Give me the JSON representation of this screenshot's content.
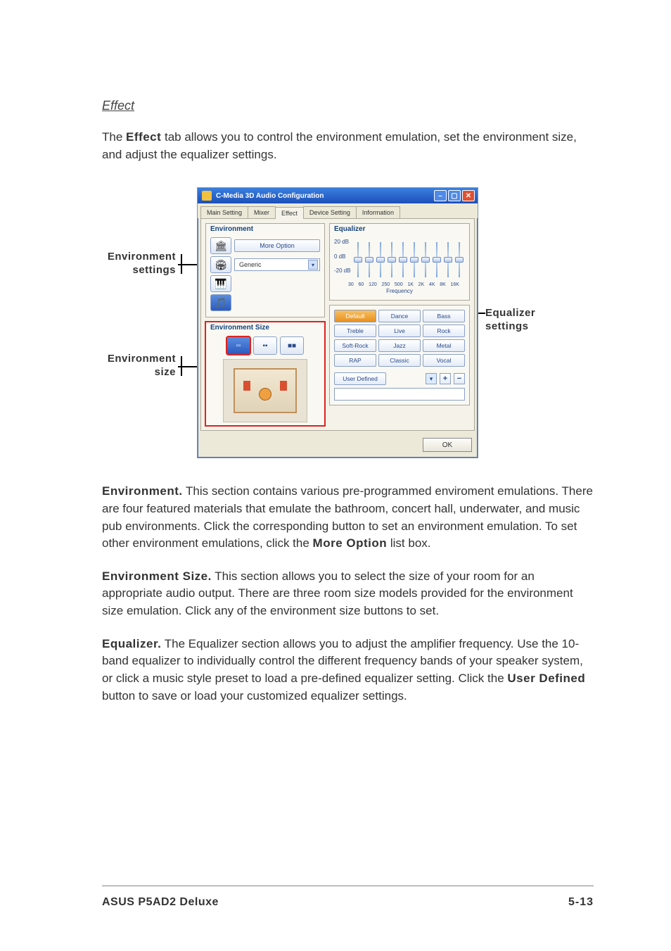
{
  "section_title": "Effect",
  "intro_pre": "The ",
  "intro_bold": "Effect",
  "intro_post": " tab allows you to control the environment emulation, set the environment size, and adjust the equalizer settings.",
  "callouts": {
    "env_settings_l1": "Environment",
    "env_settings_l2": "settings",
    "env_size_l1": "Environment",
    "env_size_l2": "size",
    "equalizer_l1": "Equalizer",
    "equalizer_l2": "settings"
  },
  "window": {
    "title": "C-Media 3D Audio Configuration",
    "tabs": [
      "Main Setting",
      "Mixer",
      "Effect",
      "Device Setting",
      "Information"
    ],
    "active_tab_index": 2,
    "environment": {
      "title": "Environment",
      "more_option": "More Option",
      "dropdown_value": "Generic",
      "icons": [
        "🏛",
        "🏟",
        "🎹",
        "🎵"
      ]
    },
    "environment_size": {
      "title": "Environment Size",
      "icons": [
        "▫▫",
        "▪▪",
        "■■"
      ]
    },
    "equalizer": {
      "title": "Equalizer",
      "db_labels": [
        "20 dB",
        "0 dB",
        "-20 dB"
      ],
      "freqs": [
        "30",
        "60",
        "120",
        "250",
        "500",
        "1K",
        "2K",
        "4K",
        "8K",
        "16K"
      ],
      "freq_label": "Frequency",
      "presets": [
        "Default",
        "Dance",
        "Bass",
        "Treble",
        "Live",
        "Rock",
        "Soft-Rock",
        "Jazz",
        "Metal",
        "RAP",
        "Classic",
        "Vocal"
      ],
      "selected_preset_index": 0,
      "user_defined": "User  Defined"
    },
    "ok": "OK"
  },
  "paragraphs": {
    "env_head": "Environment.",
    "env_body": " This section contains various pre-programmed enviroment emulations. There are four featured materials that emulate the bathroom, concert hall, underwater, and music pub environments. Click the corresponding button to set an environment emulation. To set other environment emulations, click the ",
    "env_bold2": "More Option",
    "env_tail": " list box.",
    "size_head": "Environment Size.",
    "size_body": " This section allows you to select the size of your room for an appropriate audio output. There are three room size models provided for the environment size emulation. Click any of the environment size buttons to set.",
    "eq_head": "Equalizer.",
    "eq_body": " The Equalizer section allows you to adjust the amplifier frequency. Use the 10-band equalizer to individually control the different frequency bands of your speaker system, or click a music style preset to load a pre-defined equalizer setting. Click the ",
    "eq_bold2": "User Defined",
    "eq_tail": " button to save or load your customized equalizer settings."
  },
  "footer": {
    "left": "ASUS P5AD2 Deluxe",
    "right": "5-13"
  }
}
